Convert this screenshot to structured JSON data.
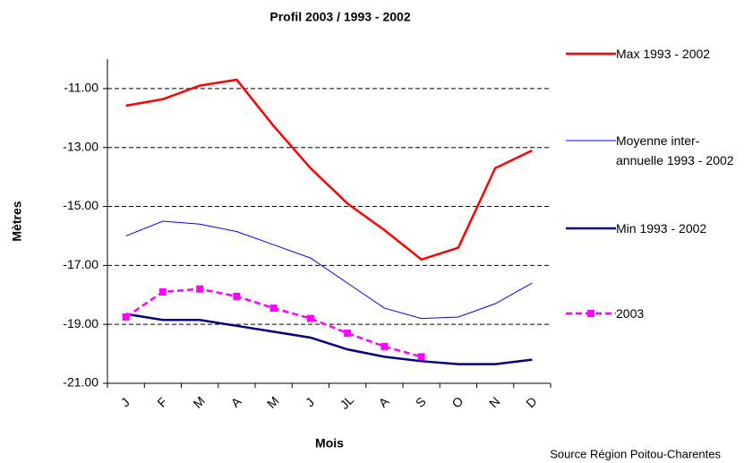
{
  "chart_data": {
    "type": "line",
    "title": "Profil 2003 / 1993 - 2002",
    "xlabel": "Mois",
    "ylabel": "Mètres",
    "source": "Source Région Poitou-Charentes",
    "categories": [
      "J",
      "F",
      "M",
      "A",
      "M",
      "J",
      "JL",
      "A",
      "S",
      "O",
      "N",
      "D"
    ],
    "ylim": [
      -21,
      -10
    ],
    "yticks": [
      {
        "value": -11,
        "label": "-11.00"
      },
      {
        "value": -13,
        "label": "-13.00"
      },
      {
        "value": -15,
        "label": "-15.00"
      },
      {
        "value": -17,
        "label": "-17.00"
      },
      {
        "value": -19,
        "label": "-19.00"
      },
      {
        "value": -21,
        "label": "-21.00"
      }
    ],
    "grid": true,
    "legend": "right",
    "series": [
      {
        "name": "Max 1993 - 2002",
        "color": "#ff0000",
        "values": [
          -11.58,
          -11.36,
          -10.9,
          -10.7,
          -12.27,
          -13.7,
          -14.9,
          -15.8,
          -16.8,
          -16.4,
          -13.7,
          -13.1
        ]
      },
      {
        "name": "Moyenne inter-annuelle 1993 - 2002",
        "color": "#0000ff",
        "values": [
          -16.0,
          -15.5,
          -15.6,
          -15.85,
          -16.3,
          -16.75,
          -17.6,
          -18.45,
          -18.8,
          -18.75,
          -18.3,
          -17.6
        ]
      },
      {
        "name": "Min 1993 - 2002",
        "color": "#000080",
        "values": [
          -18.65,
          -18.85,
          -18.85,
          -19.05,
          -19.25,
          -19.45,
          -19.85,
          -20.1,
          -20.25,
          -20.35,
          -20.35,
          -20.2
        ]
      },
      {
        "name": "2003",
        "color": "#ff00ff",
        "values": [
          -18.75,
          -17.9,
          -17.8,
          -18.05,
          -18.45,
          -18.8,
          -19.3,
          -19.75,
          -20.1,
          null,
          null,
          null
        ]
      }
    ]
  }
}
